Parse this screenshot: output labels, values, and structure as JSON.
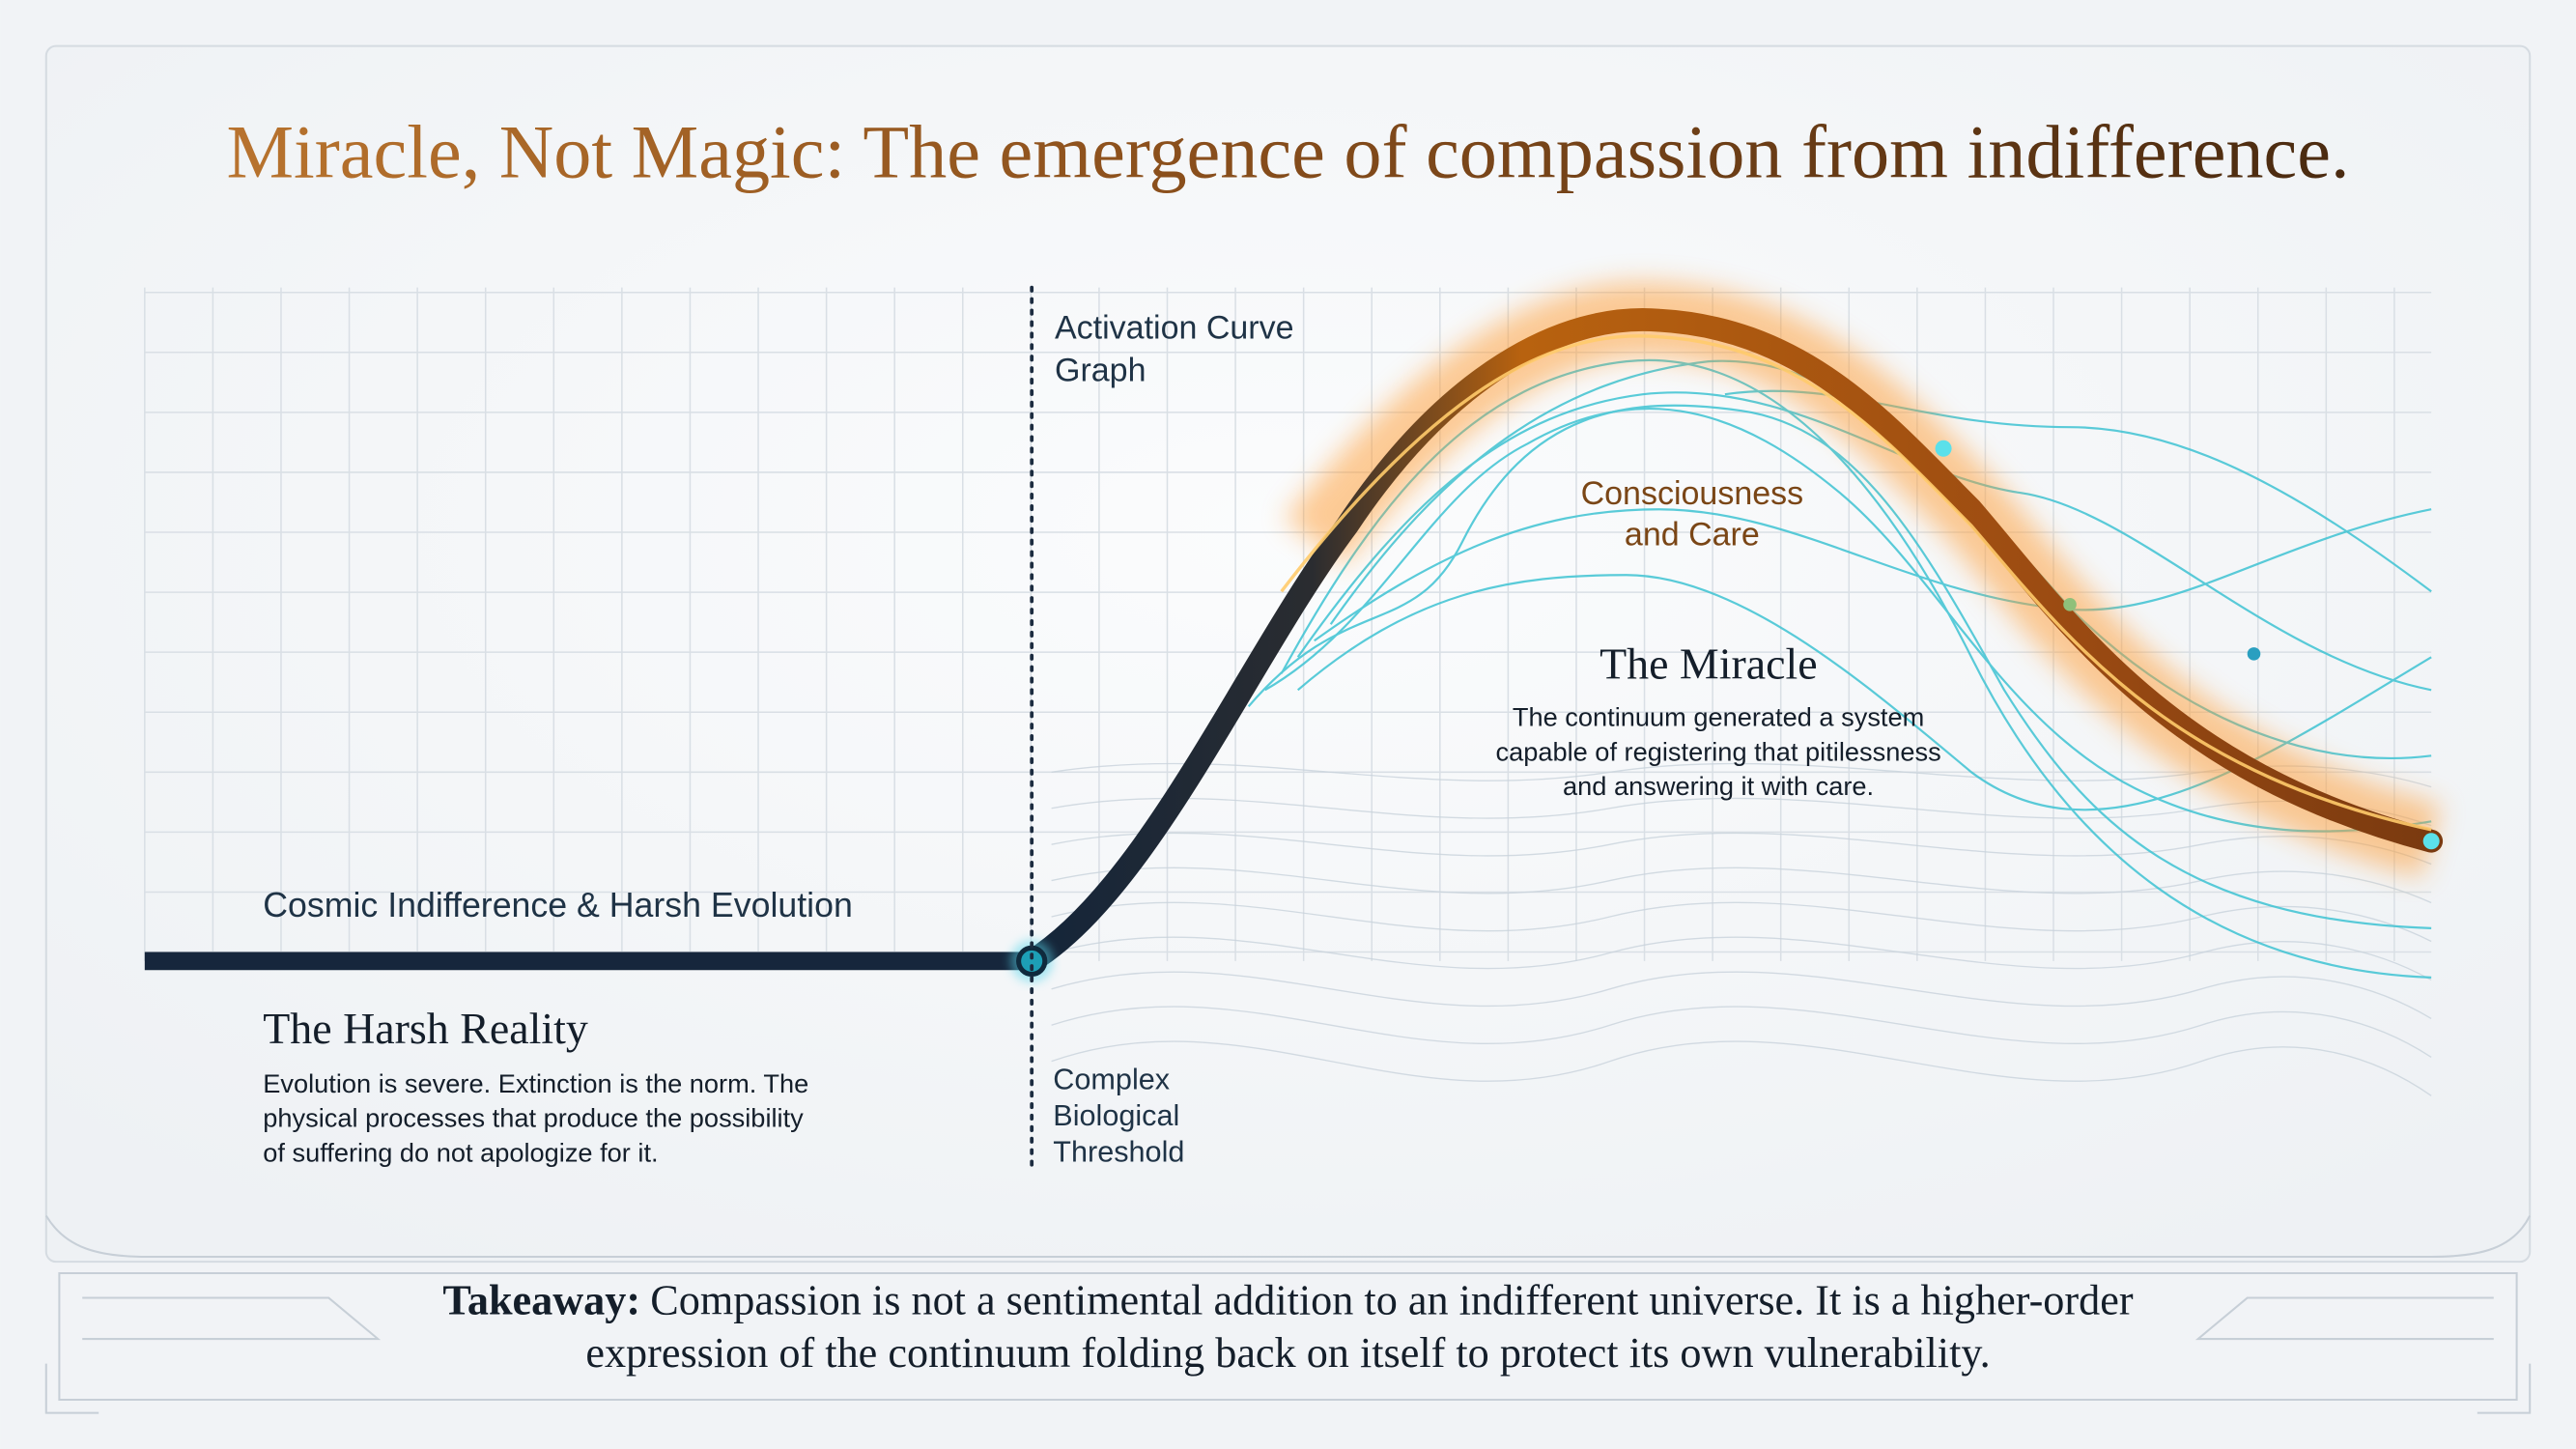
{
  "title": "Miracle, Not Magic: The emergence of compassion from indifference.",
  "graph": {
    "label_lines": [
      "Activation Curve",
      "Graph"
    ],
    "threshold_lines": [
      "Complex",
      "Biological",
      "Threshold"
    ],
    "baseline_label": "Cosmic Indifference & Harsh Evolution",
    "peak_label_lines": [
      "Consciousness",
      "and Care"
    ]
  },
  "harsh_reality": {
    "heading": "The Harsh Reality",
    "body_lines": [
      "Evolution is severe. Extinction is the norm. The",
      "physical processes that produce the possibility",
      "of suffering do not apologize for it."
    ]
  },
  "miracle": {
    "heading": "The Miracle",
    "body_lines": [
      "The continuum generated a system",
      "capable of registering that pitilessness",
      "and answering it with care."
    ]
  },
  "takeaway": {
    "lead": "Takeaway:",
    "line_1_rest": "Compassion is not a sentimental addition to an indifferent universe. It is a higher-order",
    "line_2": "expression of the continuum folding back on itself to protect its own vulnerability."
  }
}
